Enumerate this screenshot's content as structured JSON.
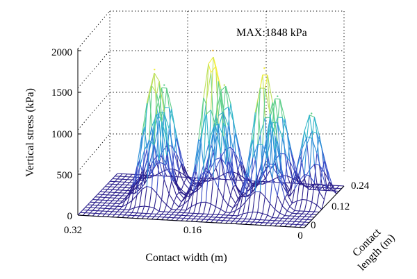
{
  "chart_data": {
    "type": "surface3d",
    "title": "",
    "annotation": "MAX:1848 kPa",
    "zlabel": "Vertical stress (kPa)",
    "xlabel": "Contact width (m)",
    "ylabel": "Contact length (m)",
    "ylabel_lines": [
      "Contact",
      "length (m)"
    ],
    "zlim": [
      0,
      2000
    ],
    "z_ticks": [
      "0",
      "500",
      "1000",
      "1500",
      "2000"
    ],
    "x_ticks": [
      "0.32",
      "0.16",
      "0"
    ],
    "y_ticks": [
      "0",
      "0.12",
      "0.24"
    ],
    "xlim": [
      0,
      0.32
    ],
    "ylim": [
      0,
      0.24
    ],
    "colormap": [
      "#2b1f8c",
      "#3a4fc8",
      "#2f8fd8",
      "#33b7c8",
      "#5fcf8a",
      "#bde05a",
      "#f2ee3c",
      "#f2b33c",
      "#d9402a"
    ],
    "peaks": [
      {
        "x": 0.235,
        "y": 0.1,
        "stress": 1600
      },
      {
        "x": 0.155,
        "y": 0.11,
        "stress": 1848
      },
      {
        "x": 0.08,
        "y": 0.1,
        "stress": 1690
      },
      {
        "x": 0.24,
        "y": 0.18,
        "stress": 1240
      },
      {
        "x": 0.155,
        "y": 0.18,
        "stress": 1280
      },
      {
        "x": 0.08,
        "y": 0.18,
        "stress": 1180
      },
      {
        "x": 0.025,
        "y": 0.15,
        "stress": 1060
      }
    ]
  }
}
